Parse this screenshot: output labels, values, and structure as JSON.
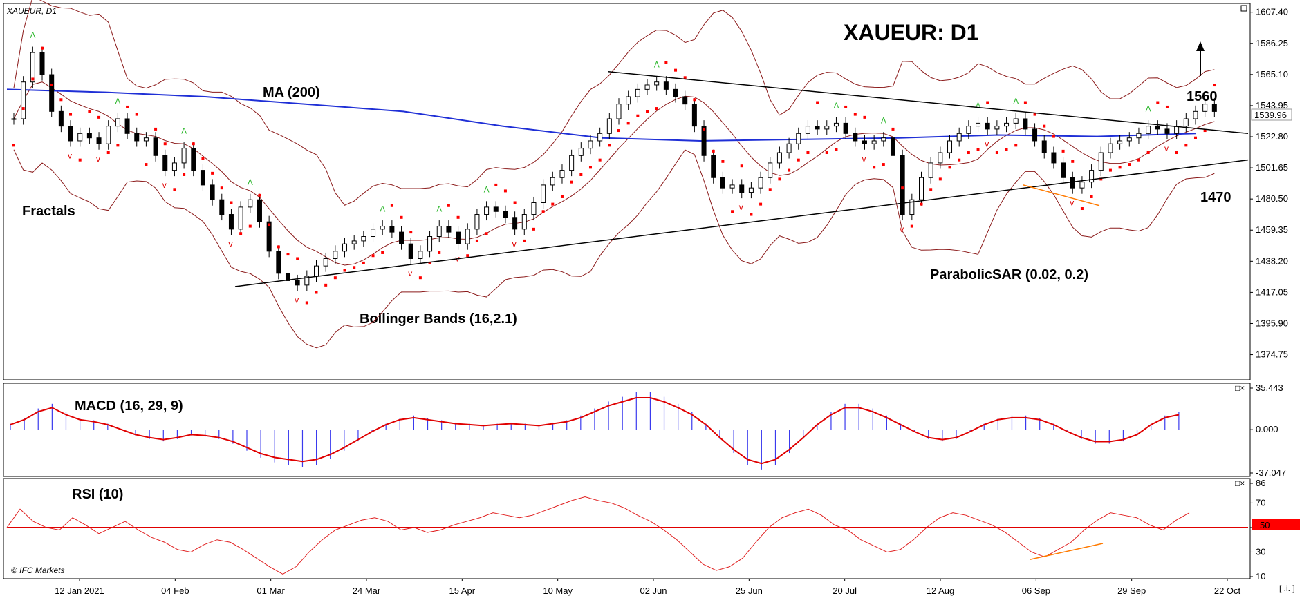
{
  "chart_data": [
    {
      "type": "candlestick",
      "symbol_label": "XAUEUR, D1",
      "title": "XAUEUR: D1",
      "ylim": [
        1360,
        1611
      ],
      "y_ticks": [
        "1607.40",
        "1586.25",
        "1565.10",
        "1543.95",
        "1522.80",
        "1501.65",
        "1480.50",
        "1459.35",
        "1438.20",
        "1417.05",
        "1395.90",
        "1374.75"
      ],
      "last_price": "1539.96",
      "x_ticks": [
        "12 Jan 2021",
        "04 Feb",
        "01 Mar",
        "24 Mar",
        "15 Apr",
        "10 May",
        "02 Jun",
        "25 Jun",
        "20 Jul",
        "12 Aug",
        "06 Sep",
        "29 Sep",
        "22 Oct"
      ],
      "close_series": [
        1535,
        1560,
        1580,
        1565,
        1540,
        1530,
        1520,
        1525,
        1522,
        1518,
        1530,
        1535,
        1525,
        1520,
        1522,
        1510,
        1500,
        1505,
        1515,
        1500,
        1490,
        1480,
        1470,
        1460,
        1475,
        1480,
        1465,
        1445,
        1430,
        1425,
        1422,
        1428,
        1435,
        1440,
        1445,
        1450,
        1452,
        1455,
        1460,
        1462,
        1458,
        1450,
        1440,
        1445,
        1455,
        1462,
        1458,
        1450,
        1460,
        1470,
        1475,
        1472,
        1468,
        1460,
        1470,
        1478,
        1490,
        1495,
        1500,
        1510,
        1515,
        1520,
        1525,
        1535,
        1545,
        1550,
        1555,
        1558,
        1560,
        1555,
        1550,
        1545,
        1530,
        1510,
        1495,
        1488,
        1490,
        1485,
        1488,
        1495,
        1505,
        1512,
        1518,
        1525,
        1530,
        1528,
        1530,
        1532,
        1525,
        1520,
        1518,
        1520,
        1522,
        1510,
        1470,
        1480,
        1495,
        1505,
        1512,
        1520,
        1525,
        1530,
        1532,
        1528,
        1530,
        1532,
        1535,
        1528,
        1520,
        1512,
        1505,
        1495,
        1488,
        1492,
        1500,
        1512,
        1518,
        1520,
        1522,
        1525,
        1530,
        1528,
        1525,
        1530,
        1535,
        1540,
        1545,
        1539.96
      ],
      "lines": {
        "ma200": {
          "label": "MA (200)",
          "values": [
            1555,
            1553,
            1550,
            1545,
            1540,
            1530,
            1522,
            1520,
            1521,
            1522,
            1524,
            1523,
            1525
          ]
        },
        "bollinger": {
          "label": "Bollinger Bands (16,2.1)"
        },
        "parabolic_sar": {
          "label": "ParabolicSAR (0.02, 0.2)"
        },
        "fractals": {
          "label": "Fractals"
        }
      },
      "levels": [
        {
          "label": "1560",
          "value": 1560
        },
        {
          "label": "1470",
          "value": 1470
        }
      ],
      "trend_arrow": "up"
    },
    {
      "type": "histogram",
      "title": "MACD (16, 29, 9)",
      "ylim": [
        -37.047,
        35.443
      ],
      "y_ticks": [
        "35.443",
        "0.000",
        "-37.047"
      ],
      "values": [
        5,
        10,
        18,
        22,
        15,
        10,
        8,
        5,
        0,
        -5,
        -8,
        -10,
        -8,
        -5,
        -6,
        -8,
        -12,
        -18,
        -24,
        -28,
        -30,
        -32,
        -30,
        -25,
        -18,
        -10,
        -2,
        5,
        10,
        12,
        10,
        8,
        6,
        5,
        4,
        5,
        6,
        5,
        4,
        6,
        8,
        12,
        18,
        24,
        28,
        32,
        32,
        28,
        22,
        15,
        5,
        -8,
        -20,
        -30,
        -34,
        -30,
        -20,
        -8,
        5,
        15,
        22,
        22,
        18,
        12,
        5,
        -2,
        -8,
        -10,
        -8,
        -2,
        5,
        10,
        12,
        12,
        10,
        5,
        -2,
        -8,
        -12,
        -12,
        -10,
        -5,
        5,
        12,
        15
      ]
    },
    {
      "type": "line",
      "title": "RSI (10)",
      "ylim": [
        10,
        86
      ],
      "y_ticks": [
        "86",
        "70",
        "50",
        "30",
        "10"
      ],
      "level": "50",
      "values": [
        50,
        65,
        55,
        50,
        48,
        58,
        52,
        45,
        50,
        55,
        48,
        42,
        38,
        32,
        30,
        36,
        40,
        38,
        32,
        25,
        18,
        12,
        18,
        30,
        40,
        48,
        52,
        56,
        58,
        55,
        48,
        50,
        46,
        48,
        52,
        55,
        58,
        62,
        60,
        58,
        60,
        64,
        68,
        72,
        75,
        72,
        70,
        66,
        60,
        55,
        48,
        40,
        30,
        20,
        15,
        18,
        25,
        38,
        50,
        58,
        62,
        65,
        60,
        52,
        48,
        40,
        35,
        30,
        32,
        40,
        50,
        58,
        62,
        60,
        56,
        52,
        46,
        38,
        30,
        26,
        32,
        38,
        48,
        56,
        62,
        60,
        58,
        52,
        48,
        56,
        62
      ]
    },
    {
      "type": "text",
      "annotations": {
        "watermark": "© IFC Markets",
        "corner_btn": "[ .i. ]"
      }
    }
  ],
  "colors": {
    "ma": "#1f2fd6",
    "bands": "#8b1a1a",
    "sar": "#ff0000",
    "macd_hist": "#3a3aee",
    "macd_signal": "#e00000",
    "rsi": "#e02020",
    "trend": "#000000",
    "orange": "#ff7a00",
    "fractal_up": "#2db82d",
    "fractal_down": "#e00000",
    "level_box": "#ff0000"
  }
}
